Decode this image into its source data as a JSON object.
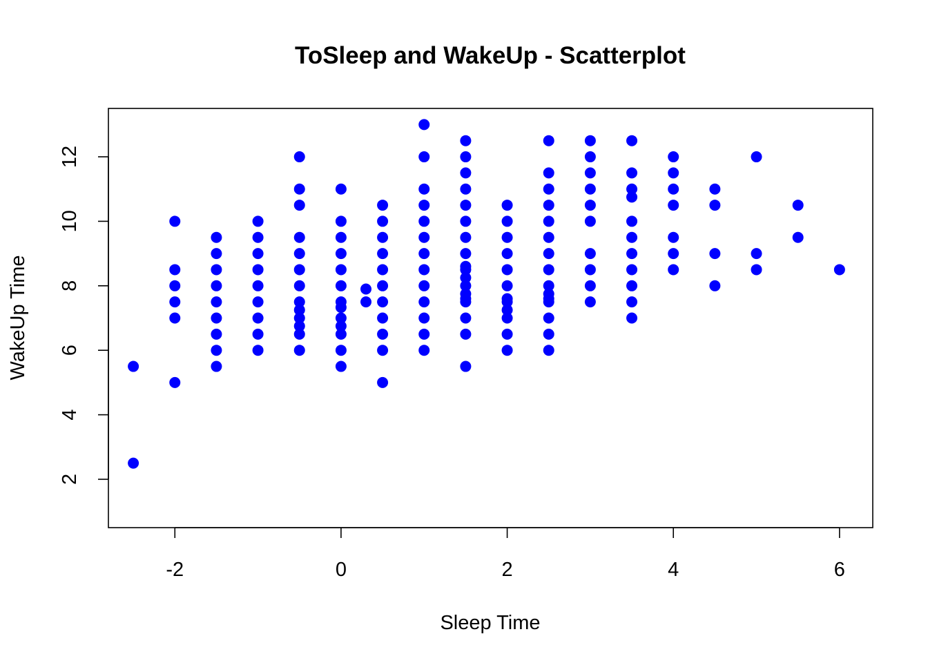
{
  "chart_data": {
    "type": "scatter",
    "title": "ToSleep and WakeUp - Scatterplot",
    "xlabel": "Sleep Time",
    "ylabel": "WakeUp Time",
    "xlim": [
      -2.8,
      6.4
    ],
    "ylim": [
      0.5,
      13.5
    ],
    "xticks": [
      -2,
      0,
      2,
      4,
      6
    ],
    "xtick_labels": [
      "-2",
      "0",
      "2",
      "4",
      "6"
    ],
    "yticks": [
      2,
      4,
      6,
      8,
      10,
      12
    ],
    "ytick_labels": [
      "2",
      "4",
      "6",
      "8",
      "10",
      "12"
    ],
    "grid": false,
    "legend": "none",
    "point_color": "#0000ff",
    "series": [
      {
        "points": [
          [
            -2.5,
            5.5
          ],
          [
            -2.5,
            2.5
          ],
          [
            -2,
            10
          ],
          [
            -2,
            8.5
          ],
          [
            -2,
            8
          ],
          [
            -2,
            7.5
          ],
          [
            -2,
            7
          ],
          [
            -2,
            5
          ],
          [
            -1.5,
            9.5
          ],
          [
            -1.5,
            9
          ],
          [
            -1.5,
            8.5
          ],
          [
            -1.5,
            8
          ],
          [
            -1.5,
            7.5
          ],
          [
            -1.5,
            7
          ],
          [
            -1.5,
            6.5
          ],
          [
            -1.5,
            6
          ],
          [
            -1.5,
            5.5
          ],
          [
            -1,
            10
          ],
          [
            -1,
            9.5
          ],
          [
            -1,
            9
          ],
          [
            -1,
            8.5
          ],
          [
            -1,
            8
          ],
          [
            -1,
            7.5
          ],
          [
            -1,
            7
          ],
          [
            -1,
            6.5
          ],
          [
            -1,
            6
          ],
          [
            -0.5,
            12
          ],
          [
            -0.5,
            11
          ],
          [
            -0.5,
            10.5
          ],
          [
            -0.5,
            9.5
          ],
          [
            -0.5,
            9
          ],
          [
            -0.5,
            8.5
          ],
          [
            -0.5,
            8
          ],
          [
            -0.5,
            7.5
          ],
          [
            -0.5,
            7.25
          ],
          [
            -0.5,
            7
          ],
          [
            -0.5,
            6.75
          ],
          [
            -0.5,
            6.5
          ],
          [
            -0.5,
            6
          ],
          [
            0,
            11
          ],
          [
            0,
            10
          ],
          [
            0,
            9.5
          ],
          [
            0,
            9
          ],
          [
            0,
            8.5
          ],
          [
            0,
            8
          ],
          [
            0,
            7.5
          ],
          [
            0,
            7.33
          ],
          [
            0,
            7
          ],
          [
            0,
            6.75
          ],
          [
            0,
            6.5
          ],
          [
            0,
            6
          ],
          [
            0,
            5.5
          ],
          [
            0.3,
            7.9
          ],
          [
            0.3,
            7.5
          ],
          [
            0.5,
            10.5
          ],
          [
            0.5,
            10
          ],
          [
            0.5,
            9.5
          ],
          [
            0.5,
            9
          ],
          [
            0.5,
            8.5
          ],
          [
            0.5,
            8
          ],
          [
            0.5,
            7.5
          ],
          [
            0.5,
            7
          ],
          [
            0.5,
            6.5
          ],
          [
            0.5,
            6
          ],
          [
            0.5,
            5
          ],
          [
            1,
            13
          ],
          [
            1,
            12
          ],
          [
            1,
            11
          ],
          [
            1,
            10.5
          ],
          [
            1,
            10
          ],
          [
            1,
            9.5
          ],
          [
            1,
            9
          ],
          [
            1,
            8.5
          ],
          [
            1,
            8
          ],
          [
            1,
            7.5
          ],
          [
            1,
            7
          ],
          [
            1,
            6.5
          ],
          [
            1,
            6
          ],
          [
            1.5,
            12.5
          ],
          [
            1.5,
            12
          ],
          [
            1.5,
            11.5
          ],
          [
            1.5,
            11
          ],
          [
            1.5,
            10.5
          ],
          [
            1.5,
            10
          ],
          [
            1.5,
            9.5
          ],
          [
            1.5,
            9
          ],
          [
            1.5,
            8.6
          ],
          [
            1.5,
            8.5
          ],
          [
            1.5,
            8.25
          ],
          [
            1.5,
            8
          ],
          [
            1.5,
            7.75
          ],
          [
            1.5,
            7.6
          ],
          [
            1.5,
            7.5
          ],
          [
            1.5,
            7
          ],
          [
            1.5,
            6.5
          ],
          [
            1.5,
            5.5
          ],
          [
            2,
            10.5
          ],
          [
            2,
            10
          ],
          [
            2,
            9.5
          ],
          [
            2,
            9
          ],
          [
            2,
            8.5
          ],
          [
            2,
            8
          ],
          [
            2,
            7.6
          ],
          [
            2,
            7.5
          ],
          [
            2,
            7.25
          ],
          [
            2,
            7
          ],
          [
            2,
            6.5
          ],
          [
            2,
            6
          ],
          [
            2.5,
            12.5
          ],
          [
            2.5,
            11.5
          ],
          [
            2.5,
            11
          ],
          [
            2.5,
            10.5
          ],
          [
            2.5,
            10
          ],
          [
            2.5,
            9.5
          ],
          [
            2.5,
            9
          ],
          [
            2.5,
            8.5
          ],
          [
            2.5,
            8
          ],
          [
            2.5,
            7.75
          ],
          [
            2.5,
            7.6
          ],
          [
            2.5,
            7.5
          ],
          [
            2.5,
            7
          ],
          [
            2.5,
            6.5
          ],
          [
            2.5,
            6
          ],
          [
            3,
            12.5
          ],
          [
            3,
            12
          ],
          [
            3,
            11.5
          ],
          [
            3,
            11
          ],
          [
            3,
            10.5
          ],
          [
            3,
            10
          ],
          [
            3,
            9
          ],
          [
            3,
            8.5
          ],
          [
            3,
            8
          ],
          [
            3,
            7.5
          ],
          [
            3.5,
            12.5
          ],
          [
            3.5,
            11.5
          ],
          [
            3.5,
            11
          ],
          [
            3.5,
            10.75
          ],
          [
            3.5,
            10
          ],
          [
            3.5,
            9.5
          ],
          [
            3.5,
            9
          ],
          [
            3.5,
            8.5
          ],
          [
            3.5,
            8
          ],
          [
            3.5,
            7.5
          ],
          [
            3.5,
            7
          ],
          [
            4,
            12
          ],
          [
            4,
            11.5
          ],
          [
            4,
            11
          ],
          [
            4,
            10.5
          ],
          [
            4,
            9.5
          ],
          [
            4,
            9
          ],
          [
            4,
            8.5
          ],
          [
            4.5,
            11
          ],
          [
            4.5,
            10.5
          ],
          [
            4.5,
            9
          ],
          [
            4.5,
            8
          ],
          [
            5,
            12
          ],
          [
            5,
            9
          ],
          [
            5,
            8.5
          ],
          [
            5.5,
            10.5
          ],
          [
            5.5,
            9.5
          ],
          [
            6,
            8.5
          ]
        ]
      }
    ]
  }
}
